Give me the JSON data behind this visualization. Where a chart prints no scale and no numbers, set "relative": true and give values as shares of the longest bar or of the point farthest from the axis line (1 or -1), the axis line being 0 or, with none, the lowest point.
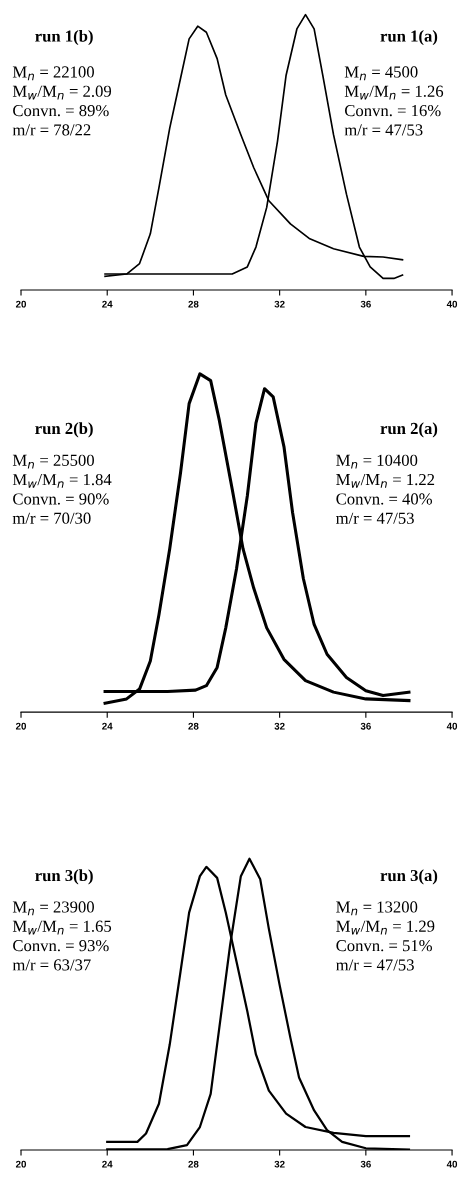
{
  "chart_data": [
    {
      "type": "line",
      "relative": true,
      "xlim": [
        20,
        40
      ],
      "xticks": [
        20,
        24,
        28,
        32,
        36,
        40
      ],
      "grid": false,
      "legend": false,
      "marker": "none",
      "line_style": "solid",
      "series": [
        {
          "color": "#000000",
          "x": [
            23.9,
            24.9,
            25.5,
            26.0,
            26.4,
            26.9,
            27.4,
            27.8,
            28.2,
            28.6,
            29.1,
            29.5,
            30.2,
            30.8,
            31.5,
            32.5,
            33.4,
            34.5,
            35.9,
            36.8,
            37.7
          ],
          "values": [
            0.05,
            0.058,
            0.096,
            0.204,
            0.372,
            0.588,
            0.768,
            0.912,
            0.958,
            0.936,
            0.84,
            0.708,
            0.564,
            0.444,
            0.324,
            0.24,
            0.186,
            0.15,
            0.122,
            0.12,
            0.11
          ]
        },
        {
          "color": "#000000",
          "x": [
            23.9,
            26.8,
            29.8,
            30.5,
            30.9,
            31.4,
            31.9,
            32.3,
            32.8,
            33.2,
            33.6,
            34.0,
            34.5,
            35.1,
            35.7,
            36.2,
            36.8,
            37.3,
            37.7
          ],
          "values": [
            0.058,
            0.058,
            0.058,
            0.084,
            0.156,
            0.3,
            0.54,
            0.78,
            0.948,
            1,
            0.948,
            0.78,
            0.564,
            0.348,
            0.156,
            0.084,
            0.042,
            0.042,
            0.054
          ]
        }
      ],
      "annotations": [
        "run 1(b)",
        "M$_{n}$ = 22100",
        "M$_{w}$/M$_{n}$ = 2.09",
        "Convn. = 89%",
        "m/r = 78/22",
        "run 1(a)",
        "M$_{n}$ = 4500",
        "M$_{w}$/M$_{n}$ = 1.26",
        "Convn. = 16%",
        "m/r = 47/53"
      ]
    },
    {
      "type": "line",
      "relative": true,
      "xlim": [
        20,
        40
      ],
      "xticks": [
        20,
        24,
        28,
        32,
        36,
        40
      ],
      "grid": false,
      "legend": false,
      "marker": "none",
      "line_style": "solid",
      "series": [
        {
          "color": "#000000",
          "x": [
            23.9,
            24.9,
            25.5,
            26.0,
            26.4,
            26.9,
            27.4,
            27.8,
            28.3,
            28.8,
            29.2,
            29.8,
            30.3,
            30.8,
            31.4,
            32.2,
            33.2,
            34.5,
            36.0,
            38.0
          ],
          "values": [
            0.026,
            0.039,
            0.068,
            0.151,
            0.288,
            0.483,
            0.707,
            0.912,
            1,
            0.98,
            0.863,
            0.659,
            0.483,
            0.366,
            0.249,
            0.156,
            0.093,
            0.059,
            0.039,
            0.034
          ]
        },
        {
          "color": "#000000",
          "x": [
            23.9,
            26.8,
            28.1,
            28.6,
            29.1,
            29.5,
            30.0,
            30.5,
            30.9,
            31.3,
            31.7,
            32.2,
            32.6,
            33.1,
            33.6,
            34.2,
            35.1,
            36.0,
            36.8,
            38.0
          ],
          "values": [
            0.061,
            0.061,
            0.065,
            0.078,
            0.132,
            0.249,
            0.424,
            0.639,
            0.854,
            0.956,
            0.932,
            0.785,
            0.59,
            0.395,
            0.259,
            0.171,
            0.102,
            0.063,
            0.049,
            0.059
          ]
        }
      ],
      "annotations": [
        "run 2(b)",
        "M$_{n}$ = 25500",
        "M$_{w}$/M$_{n}$ = 1.84",
        "Convn. = 90%",
        "m/r = 70/30",
        "run 2(a)",
        "M$_{n}$ = 10400",
        "M$_{w}$/M$_{n}$ = 1.22",
        "Convn. = 40%",
        "m/r = 47/53"
      ]
    },
    {
      "type": "line",
      "relative": true,
      "xlim": [
        20,
        40
      ],
      "xticks": [
        20,
        24,
        28,
        32,
        36,
        40
      ],
      "grid": false,
      "legend": false,
      "marker": "none",
      "line_style": "solid",
      "series": [
        {
          "color": "#000000",
          "x": [
            24.0,
            25.4,
            25.8,
            26.4,
            26.9,
            27.4,
            27.8,
            28.3,
            28.6,
            29.1,
            29.5,
            30.0,
            30.5,
            30.9,
            31.5,
            32.3,
            33.2,
            34.5,
            36.0,
            38.0
          ],
          "values": [
            0.028,
            0.028,
            0.057,
            0.159,
            0.362,
            0.612,
            0.815,
            0.94,
            0.972,
            0.934,
            0.815,
            0.646,
            0.476,
            0.328,
            0.204,
            0.125,
            0.079,
            0.059,
            0.048,
            0.048
          ]
        },
        {
          "color": "#000000",
          "x": [
            24.0,
            26.8,
            27.7,
            28.3,
            28.8,
            29.2,
            29.7,
            30.2,
            30.6,
            31.1,
            31.5,
            32.0,
            32.5,
            32.9,
            33.6,
            34.2,
            34.9,
            36.0,
            38.0
          ],
          "values": [
            0.002,
            0.003,
            0.017,
            0.079,
            0.193,
            0.419,
            0.702,
            0.94,
            1,
            0.929,
            0.759,
            0.566,
            0.385,
            0.249,
            0.136,
            0.068,
            0.028,
            0.006,
            0.002
          ]
        }
      ],
      "annotations": [
        "run 3(b)",
        "M$_{n}$ = 23900",
        "M$_{w}$/M$_{n}$ = 1.65",
        "Convn. = 93%",
        "m/r = 63/37",
        "run 3(a)",
        "M$_{n}$ = 13200",
        "M$_{w}$/M$_{n}$ = 1.29",
        "Convn. = 51%",
        "m/r = 47/53"
      ]
    }
  ]
}
